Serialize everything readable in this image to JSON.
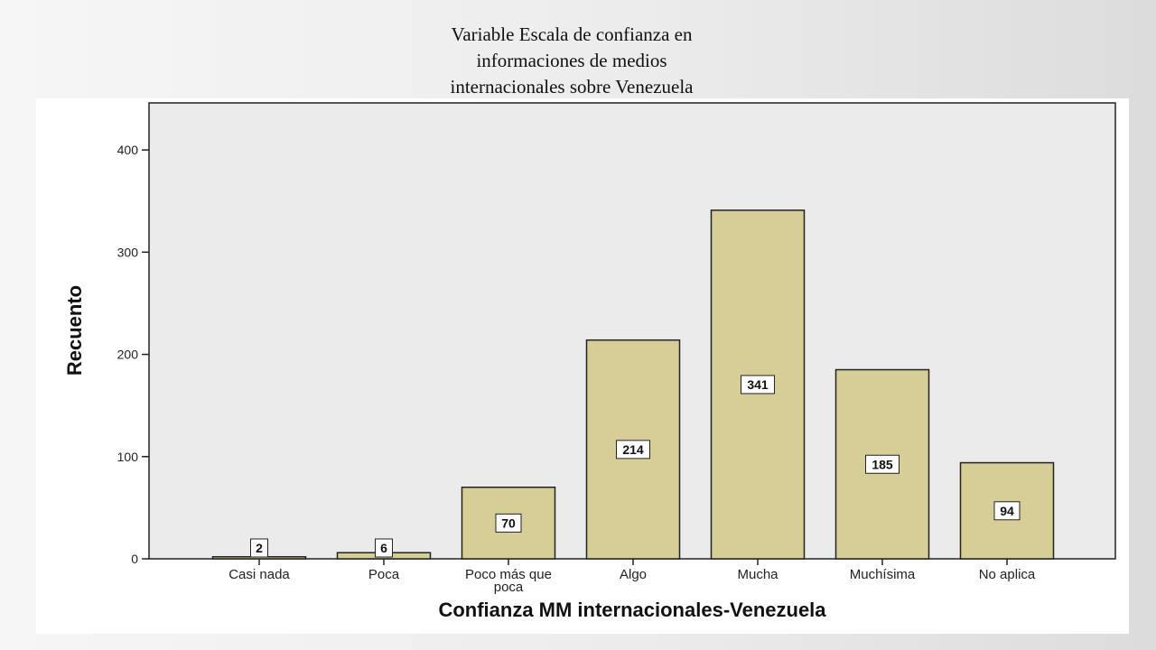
{
  "slide": {
    "title_lines": [
      "Variable Escala de confianza en",
      "informaciones de medios",
      "internacionales sobre Venezuela"
    ]
  },
  "colors": {
    "bar_fill": "#d6ce96",
    "bar_stroke": "#222222",
    "plot_background": "#ebebeb",
    "label_box": "#ffffff"
  },
  "chart_data": {
    "type": "bar",
    "categories": [
      "Casi nada",
      "Poca",
      "Poco más que poca",
      "Algo",
      "Mucha",
      "Muchísima",
      "No aplica"
    ],
    "category_lines": [
      [
        "Casi nada"
      ],
      [
        "Poca"
      ],
      [
        "Poco más que",
        "poca"
      ],
      [
        "Algo"
      ],
      [
        "Mucha"
      ],
      [
        "Muchísima"
      ],
      [
        "No aplica"
      ]
    ],
    "values": [
      2,
      6,
      70,
      214,
      341,
      185,
      94
    ],
    "data_labels": [
      "2",
      "6",
      "70",
      "214",
      "341",
      "185",
      "94"
    ],
    "xlabel": "Confianza MM internacionales-Venezuela",
    "ylabel": "Recuento",
    "ylim": [
      0,
      446
    ],
    "yticks": [
      0,
      100,
      200,
      300,
      400
    ],
    "grid": false,
    "legend": "none"
  }
}
